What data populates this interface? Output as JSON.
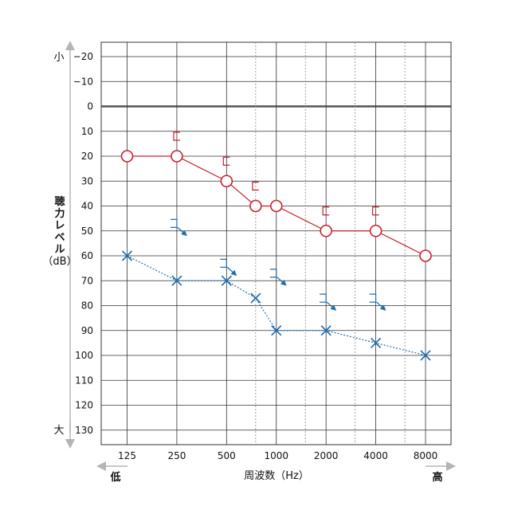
{
  "chart_data": {
    "type": "line",
    "title": "",
    "xlabel": "周波数（Hz）",
    "ylabel_lines": [
      "聴",
      "力",
      "レ",
      "ベ",
      "ル",
      "（dB）"
    ],
    "x_low_label": "低",
    "x_high_label": "高",
    "y_small_label": "小",
    "y_large_label": "大",
    "x_scale": "log2",
    "x_range": [
      125,
      8000
    ],
    "ylim": [
      -25,
      135
    ],
    "y_inverted": true,
    "xticks": [
      125,
      250,
      500,
      1000,
      2000,
      4000,
      8000
    ],
    "xtick_labels": [
      "125",
      "250",
      "500",
      "1000",
      "2000",
      "4000",
      "8000"
    ],
    "x_minor_dotted": [
      750,
      1500,
      3000,
      6000
    ],
    "yticks": [
      -20,
      -10,
      0,
      10,
      20,
      30,
      40,
      50,
      60,
      70,
      80,
      90,
      100,
      110,
      120,
      130
    ],
    "ytick_labels": [
      "−20",
      "−10",
      "0",
      "10",
      "20",
      "30",
      "40",
      "50",
      "60",
      "70",
      "80",
      "90",
      "100",
      "110",
      "120",
      "130"
    ],
    "zero_line": 0,
    "grid": true,
    "series": [
      {
        "marker": "circle",
        "line_style": "solid",
        "color": "#cc1f2e",
        "points": [
          {
            "x": 125,
            "y": 20
          },
          {
            "x": 250,
            "y": 20
          },
          {
            "x": 500,
            "y": 30
          },
          {
            "x": 750,
            "y": 40
          },
          {
            "x": 1000,
            "y": 40
          },
          {
            "x": 2000,
            "y": 50
          },
          {
            "x": 4000,
            "y": 50
          },
          {
            "x": 8000,
            "y": 60
          }
        ],
        "bracket_marker": "[",
        "bracket_points": [
          {
            "x": 250,
            "y": 12
          },
          {
            "x": 500,
            "y": 22
          },
          {
            "x": 750,
            "y": 32
          },
          {
            "x": 2000,
            "y": 42
          },
          {
            "x": 4000,
            "y": 42
          }
        ]
      },
      {
        "marker": "cross",
        "line_style": "dotted",
        "color": "#1f6fb0",
        "points": [
          {
            "x": 125,
            "y": 60
          },
          {
            "x": 250,
            "y": 70
          },
          {
            "x": 500,
            "y": 70
          },
          {
            "x": 750,
            "y": 77
          },
          {
            "x": 1000,
            "y": 90
          },
          {
            "x": 2000,
            "y": 90
          },
          {
            "x": 4000,
            "y": 95
          },
          {
            "x": 8000,
            "y": 100
          }
        ],
        "bracket_marker": "]",
        "bracket_points": [
          {
            "x": 250,
            "y": 47
          },
          {
            "x": 500,
            "y": 63
          },
          {
            "x": 1000,
            "y": 67
          },
          {
            "x": 2000,
            "y": 77
          },
          {
            "x": 4000,
            "y": 77
          }
        ],
        "arrow_direction": "down-right"
      }
    ]
  }
}
